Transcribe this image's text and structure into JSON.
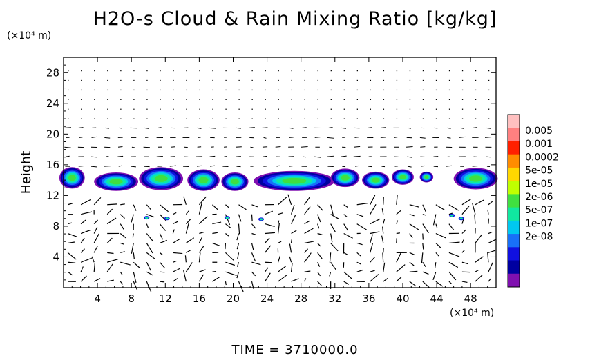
{
  "chart_data": {
    "type": "heatmap",
    "title": "H2O-s Cloud & Rain Mixing Ratio [kg/kg]",
    "ylabel": "Height",
    "xlabel": "",
    "x_unit": "(×10⁴ m)",
    "y_unit": "(×10⁴ m)",
    "footer": "TIME = 3710000.0",
    "xlim": [
      0,
      51
    ],
    "ylim": [
      0,
      30
    ],
    "x_ticks": [
      4,
      8,
      12,
      16,
      20,
      24,
      28,
      32,
      36,
      40,
      44,
      48
    ],
    "y_ticks": [
      4,
      8,
      12,
      16,
      20,
      24,
      28
    ],
    "colorbar": {
      "levels": [
        "0.005",
        "0.001",
        "0.0002",
        "5e-05",
        "1e-05",
        "2e-06",
        "5e-07",
        "1e-07",
        "2e-08"
      ],
      "colors": [
        "#ffc0c0",
        "#ff8080",
        "#ff2000",
        "#ff8c00",
        "#ffd700",
        "#c0ff00",
        "#40e040",
        "#10e8a0",
        "#00c8f0",
        "#1870f8",
        "#1010e0",
        "#0000a0",
        "#8010b0"
      ]
    },
    "cloud_band": {
      "y_range": [
        12.5,
        16
      ],
      "core_level": "1e-05",
      "edge_level": "2e-08"
    },
    "cloud_cells": [
      {
        "x": 1,
        "y": 14.3,
        "rx": 1.5,
        "ry": 1.4
      },
      {
        "x": 6.2,
        "y": 13.8,
        "rx": 2.6,
        "ry": 1.2
      },
      {
        "x": 11.5,
        "y": 14.2,
        "rx": 2.6,
        "ry": 1.5
      },
      {
        "x": 16.5,
        "y": 14.0,
        "rx": 1.9,
        "ry": 1.4
      },
      {
        "x": 20.2,
        "y": 13.8,
        "rx": 1.6,
        "ry": 1.2
      },
      {
        "x": 27.2,
        "y": 13.9,
        "rx": 4.8,
        "ry": 1.3
      },
      {
        "x": 33.2,
        "y": 14.3,
        "rx": 1.7,
        "ry": 1.2
      },
      {
        "x": 36.8,
        "y": 14.0,
        "rx": 1.6,
        "ry": 1.1
      },
      {
        "x": 40.0,
        "y": 14.4,
        "rx": 1.3,
        "ry": 1.0
      },
      {
        "x": 42.8,
        "y": 14.4,
        "rx": 0.8,
        "ry": 0.7
      },
      {
        "x": 48.6,
        "y": 14.2,
        "rx": 2.6,
        "ry": 1.4
      }
    ],
    "small_cells": [
      {
        "x": 9.8,
        "y": 9.1
      },
      {
        "x": 12.2,
        "y": 9.0
      },
      {
        "x": 19.3,
        "y": 9.1
      },
      {
        "x": 23.3,
        "y": 8.9
      },
      {
        "x": 45.8,
        "y": 9.4
      },
      {
        "x": 46.9,
        "y": 9.0
      }
    ]
  }
}
